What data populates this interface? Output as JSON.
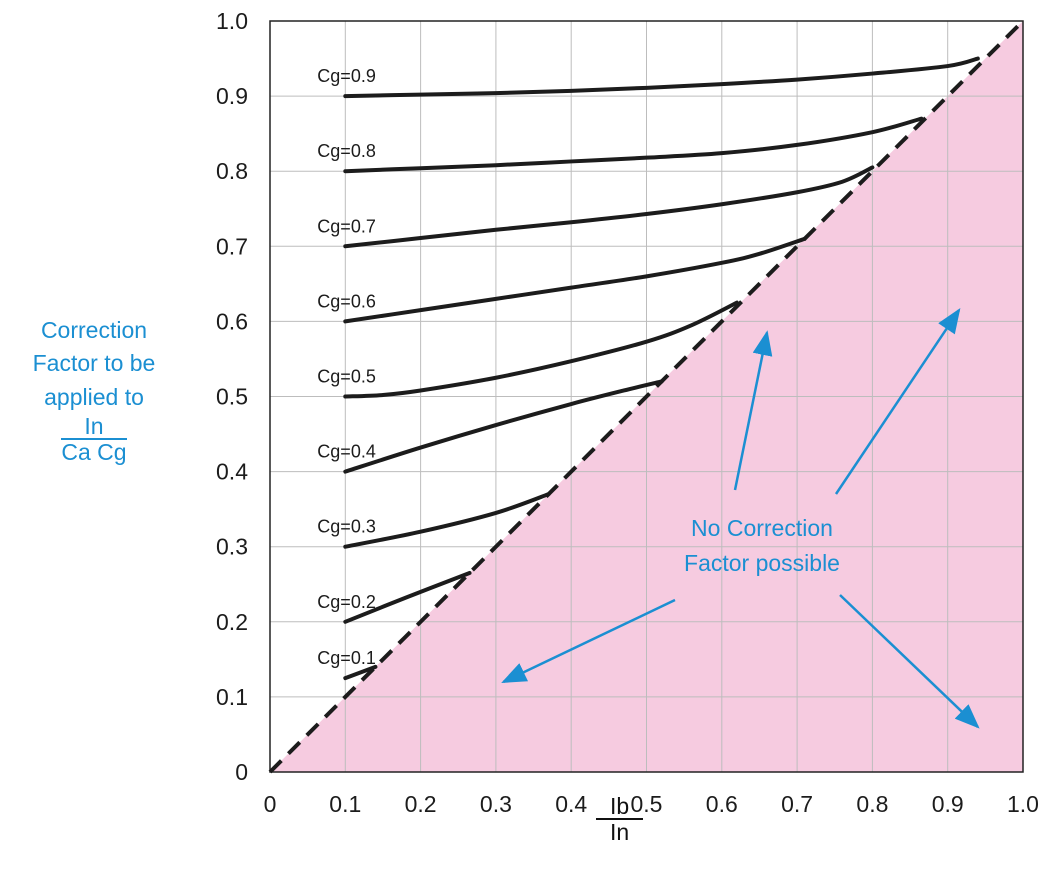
{
  "chart_data": {
    "type": "line",
    "title": "",
    "xlim": [
      0,
      1.0
    ],
    "ylim": [
      0,
      1.0
    ],
    "x_ticks": [
      "0",
      "0.1",
      "0.2",
      "0.3",
      "0.4",
      "0.5",
      "0.6",
      "0.7",
      "0.8",
      "0.9",
      "1.0"
    ],
    "y_ticks": [
      "0",
      "0.1",
      "0.2",
      "0.3",
      "0.4",
      "0.5",
      "0.6",
      "0.7",
      "0.8",
      "0.9",
      "1.0"
    ],
    "xlabel": {
      "numerator": "Ib",
      "denominator": "In"
    },
    "ylabel": {
      "lines": [
        "Correction",
        "Factor to be",
        "applied to"
      ],
      "numerator": "In",
      "denominator": "Ca Cg"
    },
    "grid": true,
    "series": [
      {
        "name": "Cg=0.1",
        "x": [
          0.1,
          0.14
        ],
        "y": [
          0.125,
          0.14
        ]
      },
      {
        "name": "Cg=0.2",
        "x": [
          0.1,
          0.18,
          0.265
        ],
        "y": [
          0.2,
          0.232,
          0.265
        ]
      },
      {
        "name": "Cg=0.3",
        "x": [
          0.1,
          0.2,
          0.3,
          0.37
        ],
        "y": [
          0.3,
          0.32,
          0.345,
          0.37
        ]
      },
      {
        "name": "Cg=0.4",
        "x": [
          0.1,
          0.2,
          0.3,
          0.4,
          0.47,
          0.52
        ],
        "y": [
          0.4,
          0.432,
          0.462,
          0.49,
          0.508,
          0.52
        ]
      },
      {
        "name": "Cg=0.5",
        "x": [
          0.1,
          0.15,
          0.2,
          0.3,
          0.4,
          0.5,
          0.56,
          0.62
        ],
        "y": [
          0.5,
          0.502,
          0.508,
          0.525,
          0.547,
          0.573,
          0.595,
          0.625
        ]
      },
      {
        "name": "Cg=0.6",
        "x": [
          0.1,
          0.2,
          0.3,
          0.4,
          0.5,
          0.6,
          0.65,
          0.71
        ],
        "y": [
          0.6,
          0.615,
          0.63,
          0.645,
          0.66,
          0.678,
          0.69,
          0.71
        ]
      },
      {
        "name": "Cg=0.7",
        "x": [
          0.1,
          0.2,
          0.3,
          0.4,
          0.5,
          0.6,
          0.7,
          0.76,
          0.8
        ],
        "y": [
          0.7,
          0.711,
          0.722,
          0.732,
          0.743,
          0.756,
          0.772,
          0.786,
          0.805
        ]
      },
      {
        "name": "Cg=0.8",
        "x": [
          0.1,
          0.2,
          0.3,
          0.4,
          0.5,
          0.6,
          0.7,
          0.8,
          0.865
        ],
        "y": [
          0.8,
          0.804,
          0.808,
          0.813,
          0.818,
          0.824,
          0.835,
          0.852,
          0.87
        ]
      },
      {
        "name": "Cg=0.9",
        "x": [
          0.1,
          0.2,
          0.3,
          0.4,
          0.5,
          0.6,
          0.7,
          0.8,
          0.9,
          0.94
        ],
        "y": [
          0.9,
          0.902,
          0.904,
          0.907,
          0.911,
          0.916,
          0.922,
          0.93,
          0.94,
          0.95
        ]
      }
    ],
    "diagonal": {
      "x": [
        0,
        1.0
      ],
      "y": [
        0,
        1.0
      ],
      "style": "dashed"
    },
    "shaded_region": {
      "color": "#f6cbe0",
      "below": "diagonal"
    },
    "annotation": {
      "lines": [
        "No Correction",
        "Factor possible"
      ],
      "color": "#1b8fd2",
      "arrows_to": [
        [
          0.66,
          0.585
        ],
        [
          0.31,
          0.12
        ],
        [
          0.915,
          0.615
        ],
        [
          0.94,
          0.06
        ]
      ]
    },
    "colors": {
      "curves": "#1c1c1c",
      "grid": "#bdbdbd",
      "label": "#1b8fd2",
      "region": "#f6cbe0"
    }
  }
}
